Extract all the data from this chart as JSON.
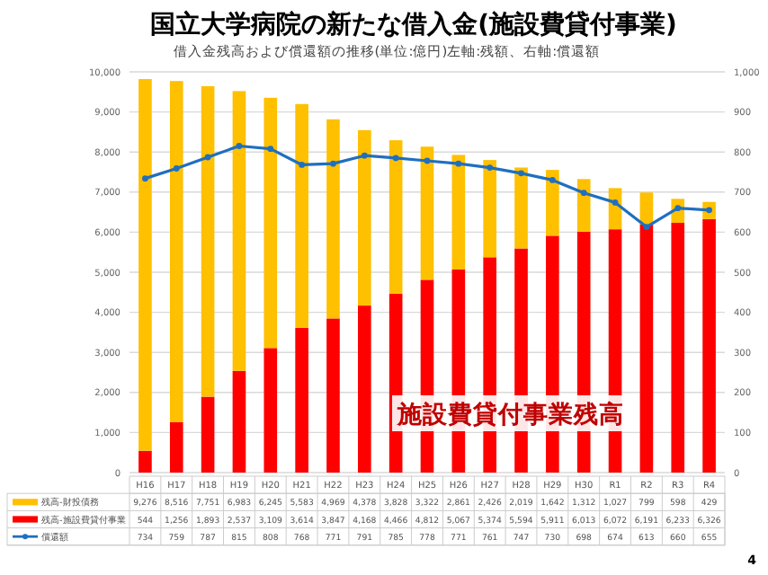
{
  "chart_data": {
    "type": "bar",
    "title": "国立大学病院の新たな借入金(施設費貸付事業)",
    "subtitle": "借入金残高および償還額の推移(単位:億円)左軸:残額、右軸:償還額",
    "categories": [
      "H16",
      "H17",
      "H18",
      "H19",
      "H20",
      "H21",
      "H22",
      "H23",
      "H24",
      "H25",
      "H26",
      "H27",
      "H28",
      "H29",
      "H30",
      "R1",
      "R2",
      "R3",
      "R4"
    ],
    "stacked": true,
    "series": [
      {
        "name": "残高-施設費貸付事業",
        "color": "#ff0000",
        "values": [
          544,
          1256,
          1893,
          2537,
          3109,
          3614,
          3847,
          4168,
          4466,
          4812,
          5067,
          5374,
          5594,
          5911,
          6013,
          6072,
          6191,
          6233,
          6326
        ],
        "value_labels": [
          "544",
          "1,256",
          "1,893",
          "2,537",
          "3,109",
          "3,614",
          "3,847",
          "4,168",
          "4,466",
          "4,812",
          "5,067",
          "5,374",
          "5,594",
          "5,911",
          "6,013",
          "6,072",
          "6,191",
          "6,233",
          "6,326"
        ]
      },
      {
        "name": "残高-財投債務",
        "color": "#ffc000",
        "values": [
          9276,
          8516,
          7751,
          6983,
          6245,
          5583,
          4969,
          4378,
          3828,
          3322,
          2861,
          2426,
          2019,
          1642,
          1312,
          1027,
          799,
          598,
          429
        ],
        "value_labels": [
          "9,276",
          "8,516",
          "7,751",
          "6,983",
          "6,245",
          "5,583",
          "4,969",
          "4,378",
          "3,828",
          "3,322",
          "2,861",
          "2,426",
          "2,019",
          "1,642",
          "1,312",
          "1,027",
          "799",
          "598",
          "429"
        ]
      },
      {
        "name": "償還額",
        "color": "#1f6fc0",
        "type": "line",
        "axis": "y2",
        "marker": "circle",
        "values": [
          734,
          759,
          787,
          815,
          808,
          768,
          771,
          791,
          785,
          778,
          771,
          761,
          747,
          730,
          698,
          674,
          613,
          660,
          655
        ],
        "value_labels": [
          "734",
          "759",
          "787",
          "815",
          "808",
          "768",
          "771",
          "791",
          "785",
          "778",
          "771",
          "761",
          "747",
          "730",
          "698",
          "674",
          "613",
          "660",
          "655"
        ]
      }
    ],
    "ylim": [
      0,
      10000
    ],
    "yticks": [
      {
        "value": 0,
        "label": "0"
      },
      {
        "value": 1000,
        "label": "1,000"
      },
      {
        "value": 2000,
        "label": "2,000"
      },
      {
        "value": 3000,
        "label": "3,000"
      },
      {
        "value": 4000,
        "label": "4,000"
      },
      {
        "value": 5000,
        "label": "5,000"
      },
      {
        "value": 6000,
        "label": "6,000"
      },
      {
        "value": 7000,
        "label": "7,000"
      },
      {
        "value": 8000,
        "label": "8,000"
      },
      {
        "value": 9000,
        "label": "9,000"
      },
      {
        "value": 10000,
        "label": "10,000"
      }
    ],
    "y2lim": [
      0,
      1000
    ],
    "y2ticks": [
      0,
      100,
      200,
      300,
      400,
      500,
      600,
      700,
      800,
      900,
      {
        "value": 1000,
        "label": "1,000"
      }
    ],
    "grid": "y",
    "legend": "bottom",
    "annotations": [
      "施設費貸付事業残高",
      "4"
    ]
  }
}
